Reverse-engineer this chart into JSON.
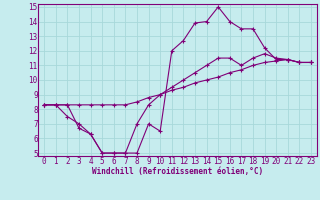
{
  "xlabel": "Windchill (Refroidissement éolien,°C)",
  "bg_color": "#c6ecee",
  "line_color": "#800078",
  "grid_color": "#a8d8da",
  "xlim": [
    -0.5,
    23.5
  ],
  "ylim": [
    4.8,
    15.2
  ],
  "xticks": [
    0,
    1,
    2,
    3,
    4,
    5,
    6,
    7,
    8,
    9,
    10,
    11,
    12,
    13,
    14,
    15,
    16,
    17,
    18,
    19,
    20,
    21,
    22,
    23
  ],
  "yticks": [
    5,
    6,
    7,
    8,
    9,
    10,
    11,
    12,
    13,
    14,
    15
  ],
  "line1_x": [
    0,
    1,
    2,
    3,
    4,
    5,
    6,
    7,
    8,
    9,
    10,
    11,
    12,
    13,
    14,
    15,
    16,
    17,
    18,
    19,
    20,
    21,
    22,
    23
  ],
  "line1_y": [
    8.3,
    8.3,
    8.3,
    6.7,
    6.3,
    5.0,
    5.0,
    5.0,
    5.0,
    7.0,
    6.5,
    12.0,
    12.7,
    13.9,
    14.0,
    15.0,
    14.0,
    13.5,
    13.5,
    12.2,
    11.4,
    11.4,
    11.2,
    11.2
  ],
  "line2_x": [
    0,
    1,
    2,
    3,
    4,
    5,
    6,
    7,
    8,
    9,
    10,
    11,
    12,
    13,
    14,
    15,
    16,
    17,
    18,
    19,
    20,
    21,
    22,
    23
  ],
  "line2_y": [
    8.3,
    8.3,
    8.3,
    8.3,
    8.3,
    8.3,
    8.3,
    8.3,
    8.5,
    8.8,
    9.0,
    9.3,
    9.5,
    9.8,
    10.0,
    10.2,
    10.5,
    10.7,
    11.0,
    11.2,
    11.3,
    11.4,
    11.2,
    11.2
  ],
  "line3_x": [
    0,
    1,
    2,
    3,
    4,
    5,
    6,
    7,
    8,
    9,
    10,
    11,
    12,
    13,
    14,
    15,
    16,
    17,
    18,
    19,
    20,
    21,
    22,
    23
  ],
  "line3_y": [
    8.3,
    8.3,
    7.5,
    7.0,
    6.3,
    5.0,
    5.0,
    5.0,
    7.0,
    8.3,
    9.0,
    9.5,
    10.0,
    10.5,
    11.0,
    11.5,
    11.5,
    11.0,
    11.5,
    11.8,
    11.5,
    11.4,
    11.2,
    11.2
  ],
  "tick_fontsize": 5.5,
  "xlabel_fontsize": 5.5,
  "marker_size": 3.0,
  "linewidth": 0.8
}
